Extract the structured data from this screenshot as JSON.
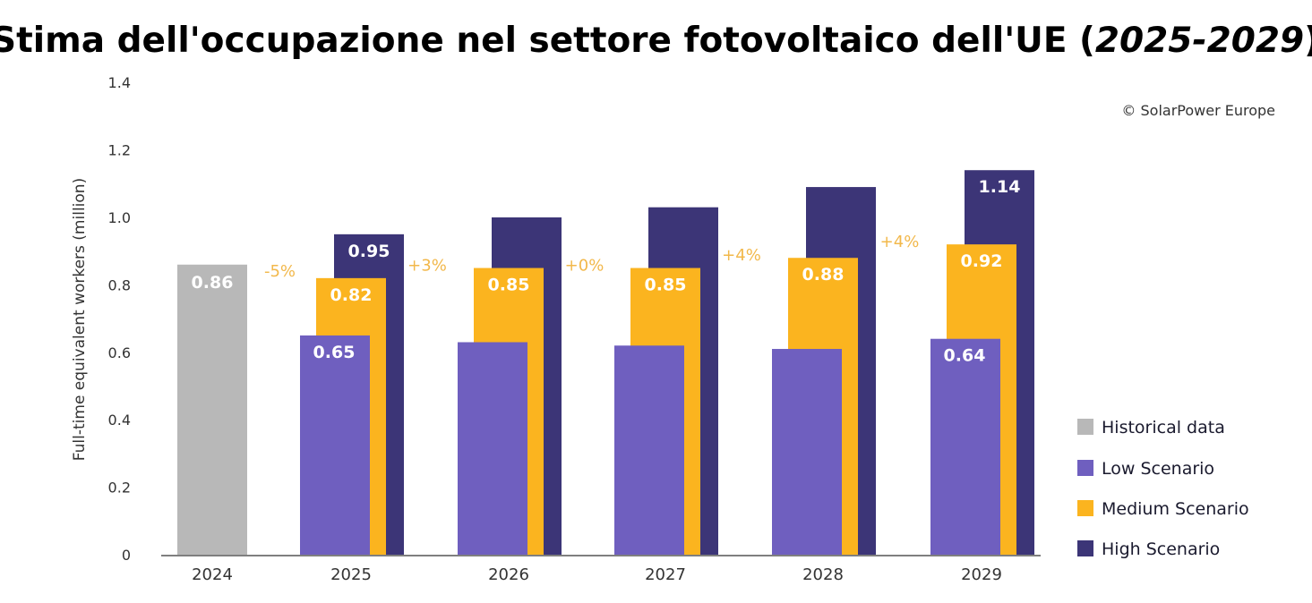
{
  "chart_data": {
    "type": "bar",
    "title_main": "Stima dell'occupazione nel settore fotovoltaico dell'UE (",
    "title_years": "2025-2029",
    "title_close": ")",
    "copyright": "© SolarPower Europe",
    "ylabel": "Full-time equivalent workers (million)",
    "xlabel": "",
    "ylim": [
      0,
      1.4
    ],
    "yticks": [
      "0",
      "0.2",
      "0.4",
      "0.6",
      "0.8",
      "1.0",
      "1.2",
      "1.4"
    ],
    "ytick_values": [
      0,
      0.2,
      0.4,
      0.6,
      0.8,
      1.0,
      1.2,
      1.4
    ],
    "categories": [
      "2024",
      "2025",
      "2026",
      "2027",
      "2028",
      "2029"
    ],
    "historical": {
      "name": "Historical data",
      "color": "#B8B8B8",
      "category": "2024",
      "value": 0.86,
      "label": "0.86"
    },
    "series": [
      {
        "name": "Low Scenario",
        "color": "#6F5FBF",
        "values": [
          null,
          0.65,
          0.63,
          0.62,
          0.61,
          0.64
        ],
        "labels": [
          null,
          "0.65",
          null,
          null,
          null,
          "0.64"
        ]
      },
      {
        "name": "Medium Scenario",
        "color": "#FBB41F",
        "values": [
          null,
          0.82,
          0.85,
          0.85,
          0.88,
          0.92
        ],
        "labels": [
          null,
          "0.82",
          "0.85",
          "0.85",
          "0.88",
          "0.92"
        ]
      },
      {
        "name": "High Scenario",
        "color": "#3C3577",
        "values": [
          null,
          0.95,
          1.0,
          1.03,
          1.09,
          1.14
        ],
        "labels": [
          null,
          "0.95",
          null,
          null,
          null,
          "1.14"
        ]
      }
    ],
    "growth_labels": [
      "-5%",
      "+3%",
      "+0%",
      "+4%",
      "+4%"
    ],
    "growth_color": "#F2B84B",
    "legend": [
      "Historical data",
      "Low Scenario",
      "Medium Scenario",
      "High Scenario"
    ],
    "legend_placement": "bottom-right",
    "grid": false
  }
}
